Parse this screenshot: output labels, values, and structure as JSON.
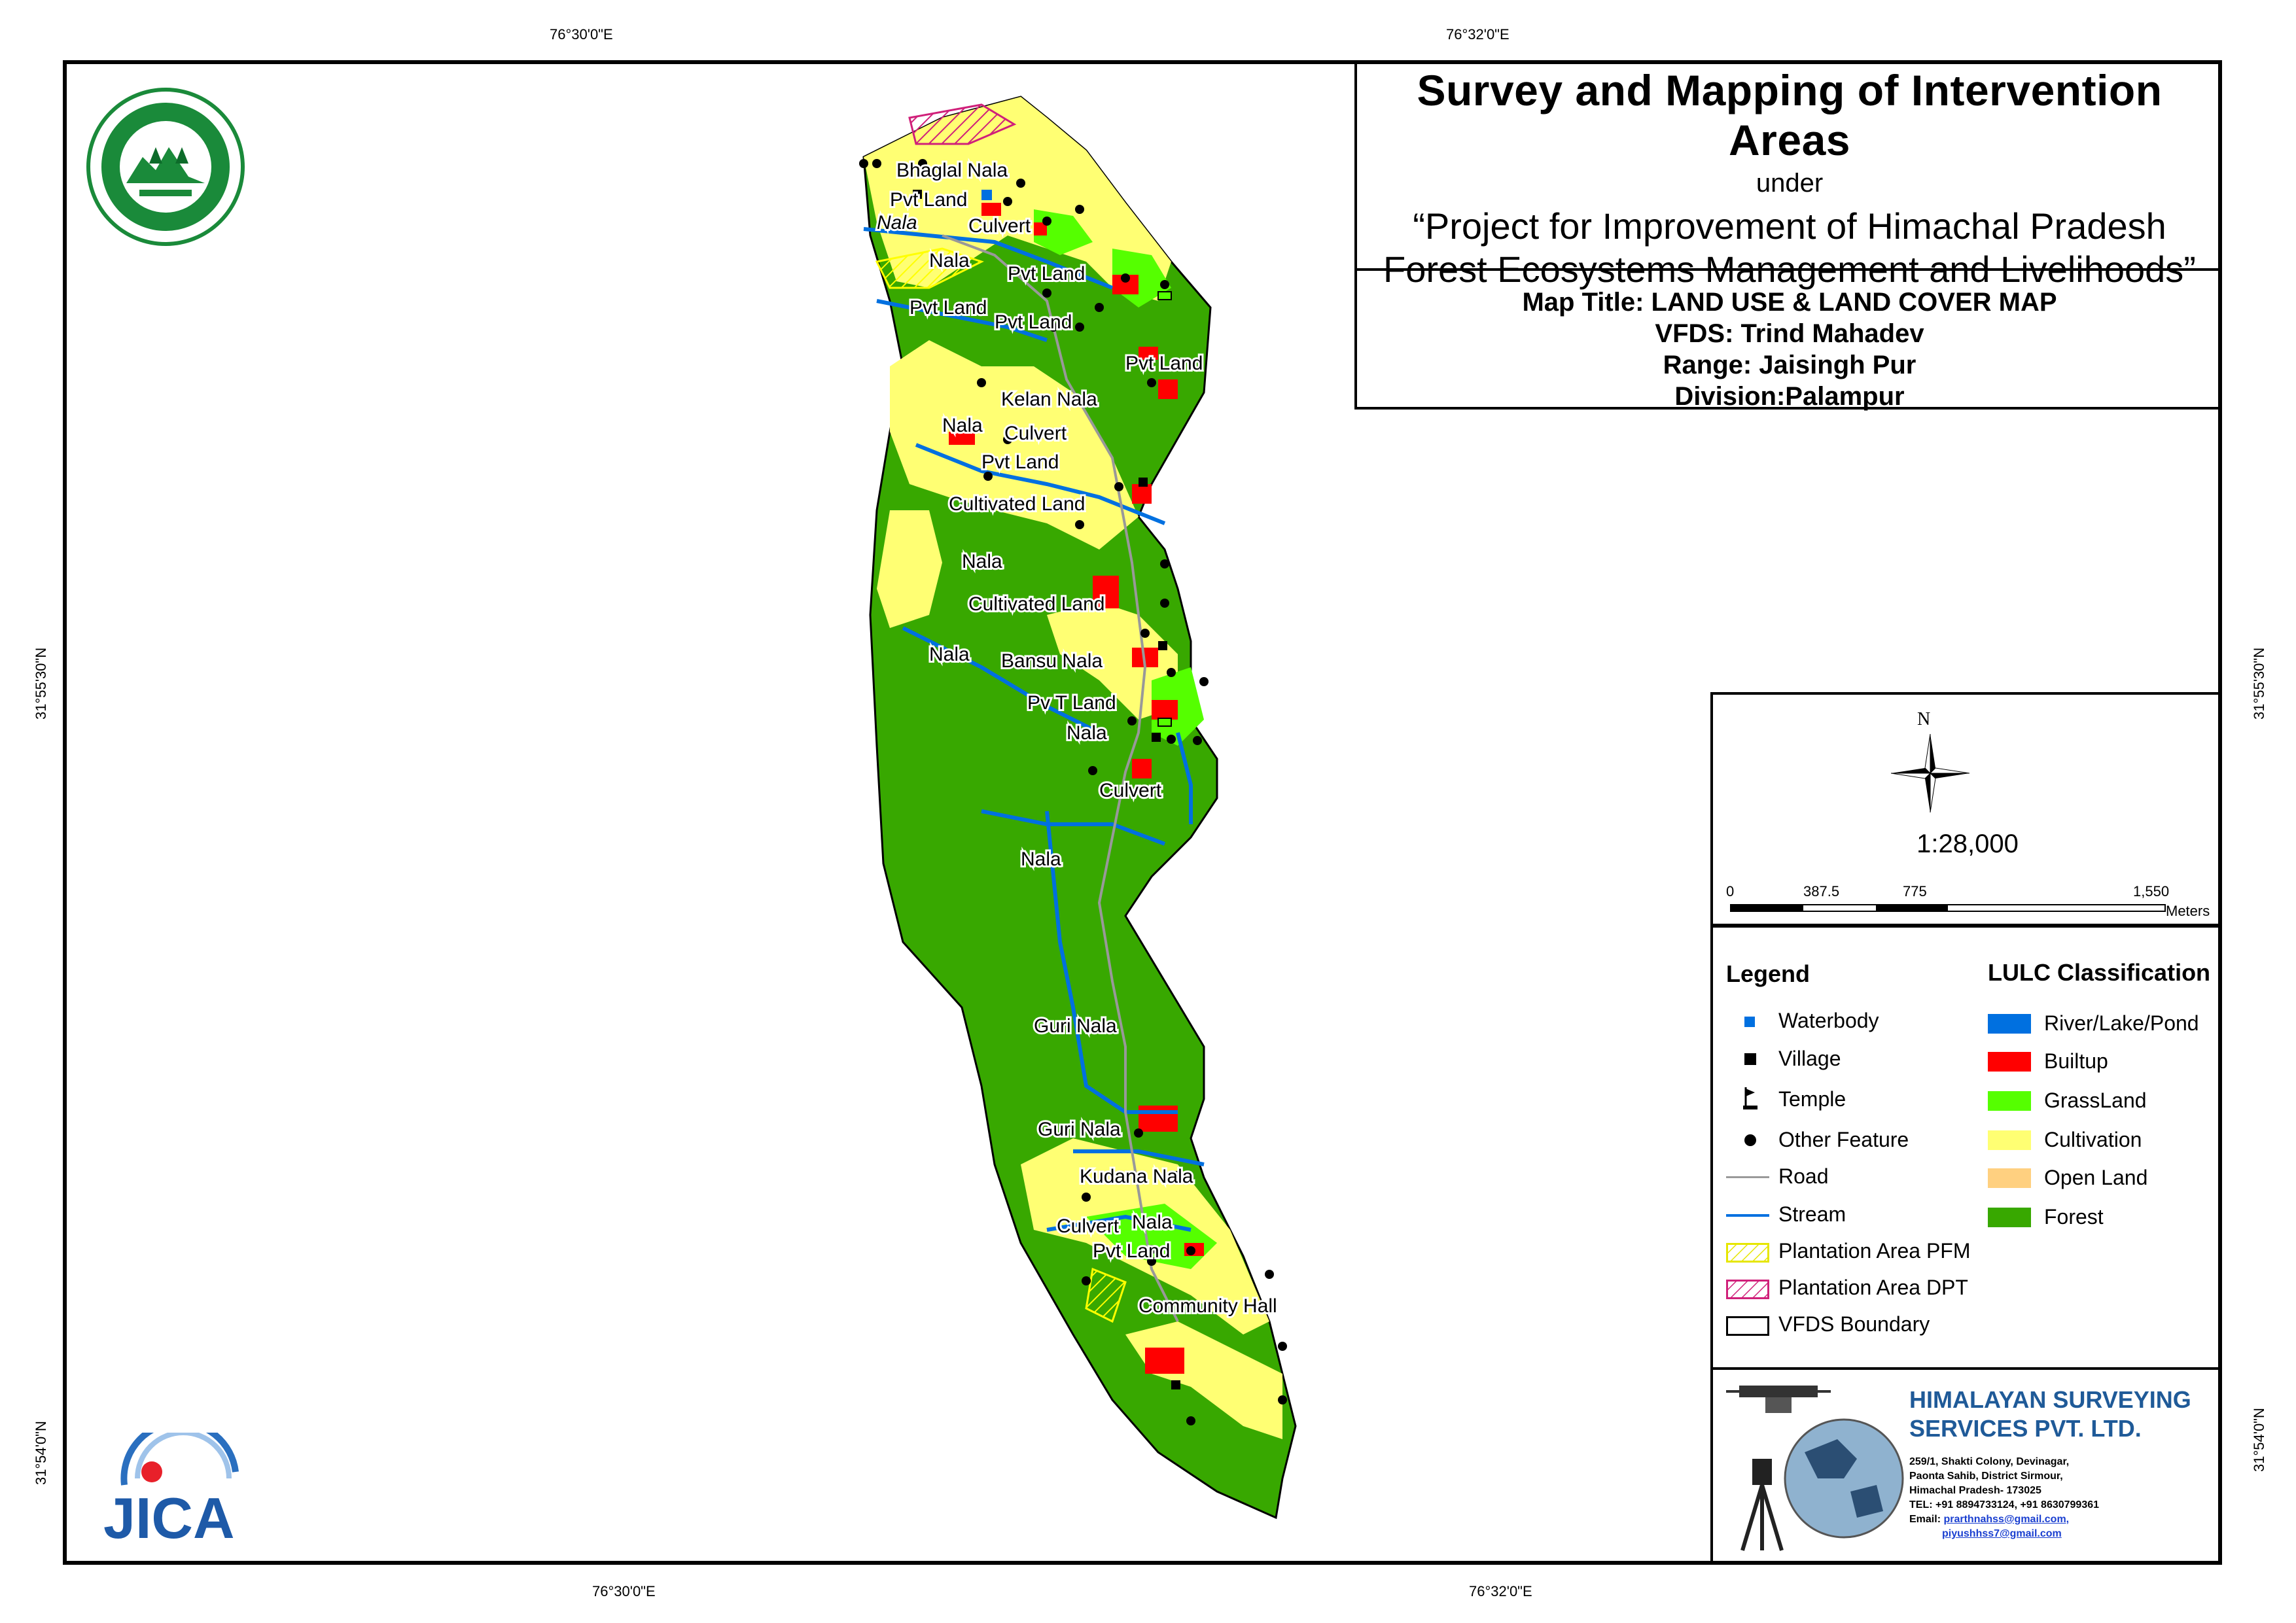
{
  "coordinates": {
    "top_left": "76°30'0\"E",
    "top_right": "76°32'0\"E",
    "bottom_left": "76°30'0\"E",
    "bottom_right": "76°32'0\"E",
    "left_upper": "31°55'30\"N",
    "left_lower": "31°54'0\"N",
    "right_upper": "31°55'30\"N",
    "right_lower": "31°54'0\"N"
  },
  "title": {
    "main": "Survey and Mapping of Intervention Areas",
    "under": "under",
    "project_line1": "“Project for Improvement of Himachal Pradesh",
    "project_line2": "Forest Ecosystems Management and Livelihoods”"
  },
  "info": {
    "map_title": "Map Title: LAND USE & LAND COVER MAP",
    "vfds": "VFDS: Trind Mahadev",
    "range": "Range: Jaisingh Pur",
    "division": "Division:Palampur"
  },
  "north_arrow": {
    "label": "N"
  },
  "scale": {
    "ratio": "1:28,000",
    "ticks": [
      "0",
      "387.5",
      "775",
      "1,550"
    ],
    "unit": "Meters"
  },
  "legend": {
    "heading": "Legend",
    "items": [
      {
        "label": "Waterbody",
        "icon": "waterbody-square"
      },
      {
        "label": "Village",
        "icon": "village-square"
      },
      {
        "label": "Temple",
        "icon": "temple-flag"
      },
      {
        "label": "Other Feature",
        "icon": "dot"
      },
      {
        "label": "Road",
        "icon": "gray-line"
      },
      {
        "label": "Stream",
        "icon": "blue-line"
      },
      {
        "label": "Plantation Area PFM",
        "icon": "yellow-hatch"
      },
      {
        "label": "Plantation Area DPT",
        "icon": "magenta-hatch"
      },
      {
        "label": "VFDS Boundary",
        "icon": "black-outline"
      }
    ]
  },
  "lulc": {
    "heading": "LULC Classification",
    "classes": [
      {
        "label": "River/Lake/Pond",
        "color": "#0070e0"
      },
      {
        "label": "Builtup",
        "color": "#ff0000"
      },
      {
        "label": "GrassLand",
        "color": "#55ff00"
      },
      {
        "label": "Cultivation",
        "color": "#ffff73"
      },
      {
        "label": "Open Land",
        "color": "#ffd080"
      },
      {
        "label": "Forest",
        "color": "#38a800"
      }
    ]
  },
  "company": {
    "name_line1": "HIMALAYAN SURVEYING",
    "name_line2": "SERVICES PVT. LTD.",
    "address1": "259/1, Shakti Colony, Devinagar,",
    "address2": "Paonta Sahib, District Sirmour,",
    "address3": "Himachal Pradesh- 173025",
    "tel": "TEL: +91 8894733124, +91 8630799361",
    "email_label": "Email: ",
    "email1": "prarthnahss@gmail.com,",
    "email2": "piyushhss7@gmail.com"
  },
  "logos": {
    "forest_dept": "Himachal Pradesh forest department emblem",
    "jica_text": "JICA"
  },
  "map_labels": [
    "Bhaglal Nala",
    "Pvt Land",
    "Nala",
    "Culvert",
    "Nala",
    "Pvt Land",
    "Pvt Land",
    "Pvt Land",
    "Pvt Land",
    "Kelan Nala",
    "Nala",
    "Culvert",
    "Pvt Land",
    "Cultivated Land",
    "Nala",
    "Cultivated Land",
    "Nala",
    "Bansu Nala",
    "Pv T Land",
    "Nala",
    "Culvert",
    "Nala",
    "Guri Nala",
    "Guri Nala",
    "Kudana Nala",
    "Culvert",
    "Nala",
    "Pvt Land",
    "Community Hall"
  ]
}
